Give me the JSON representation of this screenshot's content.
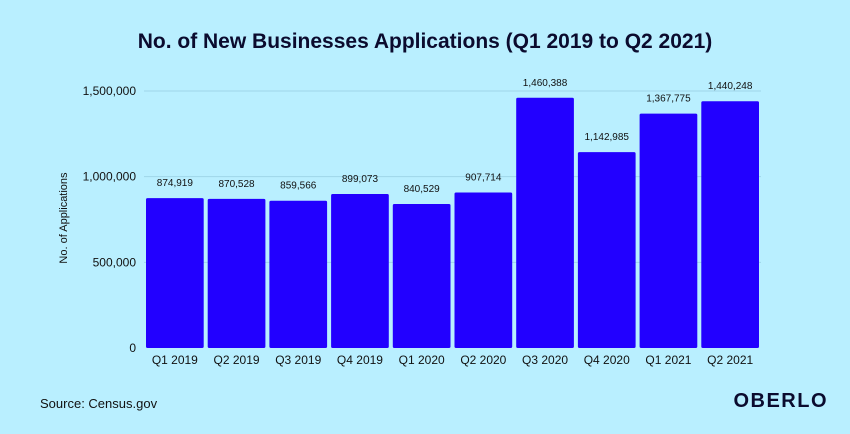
{
  "chart_data": {
    "type": "bar",
    "title": "No. of New Businesses Applications (Q1 2019 to Q2 2021)",
    "ylabel": "No. of Applications",
    "xlabel": "",
    "categories": [
      "Q1 2019",
      "Q2 2019",
      "Q3 2019",
      "Q4 2019",
      "Q1 2020",
      "Q2 2020",
      "Q3 2020",
      "Q4 2020",
      "Q1 2021",
      "Q2 2021"
    ],
    "values": [
      874919,
      870528,
      859566,
      899073,
      840529,
      907714,
      1460388,
      1142985,
      1367775,
      1440248
    ],
    "value_labels": [
      "874,919",
      "870,528",
      "859,566",
      "899,073",
      "840,529",
      "907,714",
      "1,460,388",
      "1,142,985",
      "1,367,775",
      "1,440,248"
    ],
    "ylim": [
      0,
      1500000
    ],
    "yticks": [
      0,
      500000,
      1000000,
      1500000
    ],
    "ytick_labels": [
      "0",
      "500,000",
      "1,000,000",
      "1,500,000"
    ],
    "grid": true,
    "bar_color": "#2200ff",
    "grid_color": "#9fd6e8",
    "background": "#b9efff"
  },
  "source_text": "Source: Census.gov",
  "brand": "OBERLO"
}
